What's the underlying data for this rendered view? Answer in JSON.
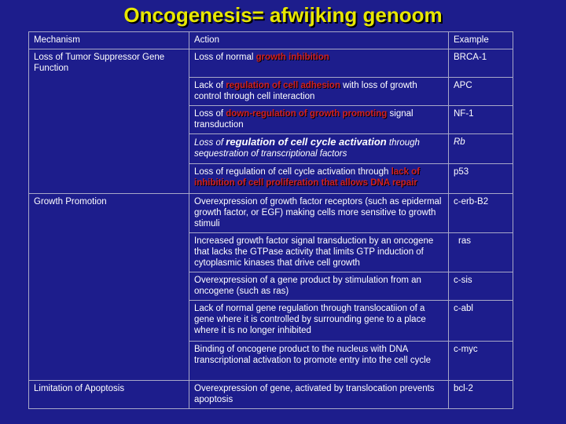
{
  "title": "Oncogenesis= afwijking genoom",
  "headers": {
    "mechanism": "Mechanism",
    "action": "Action",
    "example": "Example"
  },
  "groups": {
    "tumor_suppressor": "Loss of Tumor Suppressor Gene Function",
    "growth_promotion": "Growth Promotion",
    "limitation_apoptosis": "Limitation of Apoptosis"
  },
  "rows": [
    {
      "action": {
        "pre": "Loss of normal ",
        "hl": "growth inhibition",
        "post": ""
      },
      "example": "BRCA-1"
    },
    {
      "action": {
        "pre": "Lack of ",
        "hl": "regulation of cell adhesion",
        "post": " with loss of growth control through cell interaction"
      },
      "example": "APC"
    },
    {
      "action": {
        "pre": "Loss of ",
        "hl": "down-regulation of growth promoting",
        "post": " signal transduction"
      },
      "example": "NF-1"
    },
    {
      "action": {
        "pre": "Loss of ",
        "hl": "regulation of cell cycle activation",
        "post": " through sequestration of transcriptional factors"
      },
      "example": "Rb"
    },
    {
      "action": {
        "pre": "Loss of regulation of cell cycle activation through ",
        "hl": "lack of inhibition of cell proliferation that allows DNA repair",
        "post": ""
      },
      "example": "p53"
    },
    {
      "action": {
        "text": "Overexpression of growth factor receptors (such as epidermal growth factor, or EGF) making cells more sensitive to growth stimuli"
      },
      "example": "c-erb-B2"
    },
    {
      "action": {
        "text": "Increased growth factor signal transduction by an oncogene that lacks the GTPase activity that limits GTP induction of cytoplasmic kinases that drive cell growth"
      },
      "example": "ras"
    },
    {
      "action": {
        "text": "Overexpression of a gene product by stimulation from an oncogene (such as ras)"
      },
      "example": "c-sis"
    },
    {
      "action": {
        "text": "Lack of normal gene regulation through translocatiion of a gene where it is controlled by surrounding gene to a place where it is no longer inhibited"
      },
      "example": "c-abl"
    },
    {
      "action": {
        "text": "Binding of oncogene product to the nucleus with DNA transcriptional activation to promote entry into the cell cycle"
      },
      "example": "c-myc"
    },
    {
      "action": {
        "text": "Overexpression of gene, activated by translocation prevents apoptosis"
      },
      "example": "bcl-2"
    }
  ],
  "colors": {
    "background": "#1d1d8c",
    "title": "#e8e800",
    "highlight": "#d02020",
    "text": "#ffffff",
    "border": "#a8a8c8"
  }
}
